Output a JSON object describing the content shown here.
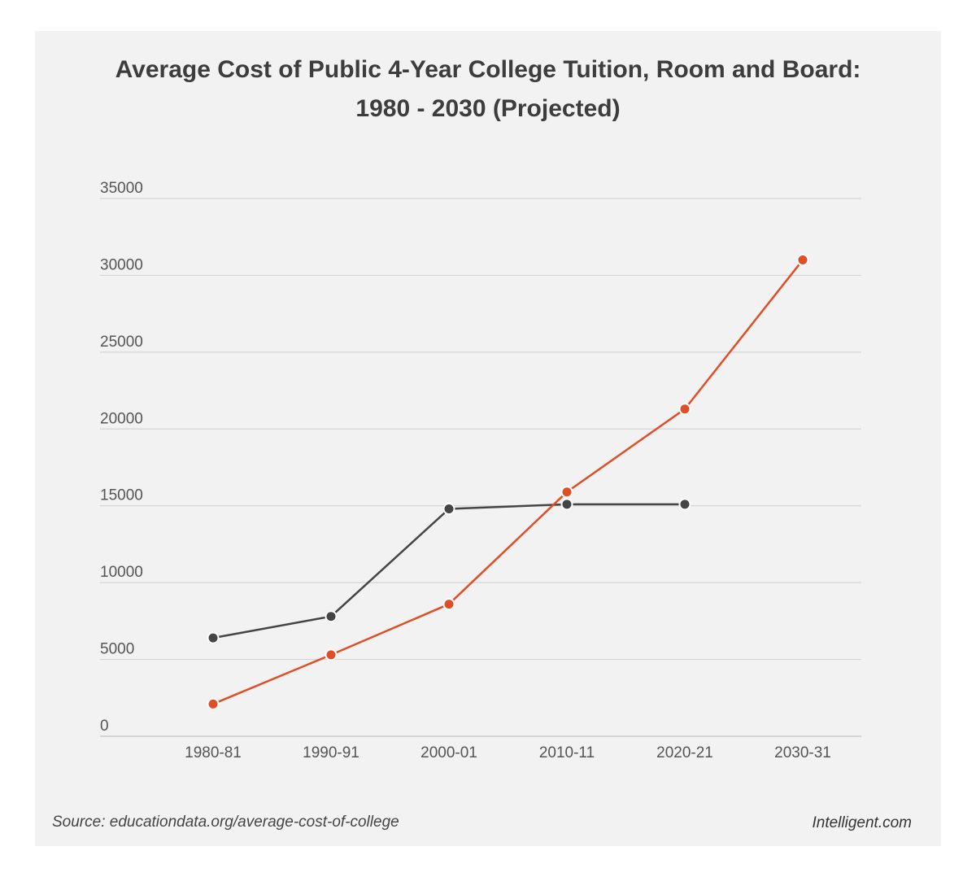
{
  "chart_data": {
    "type": "line",
    "title_line1": "Average Cost of Public 4-Year College Tuition, Room and Board:",
    "title_line2": "1980 - 2030 (Projected)",
    "xlabel": "",
    "ylabel": "",
    "categories": [
      "1980-81",
      "1990-91",
      "2000-01",
      "2010-11",
      "2020-21",
      "2030-31"
    ],
    "y_ticks": [
      "35000",
      "30000",
      "25000",
      "20000",
      "15000",
      "10000",
      "5000",
      "0"
    ],
    "ylim": [
      0,
      35000
    ],
    "grid": true,
    "legend": "none",
    "series": [
      {
        "color": "#454545",
        "values": [
          6400,
          7800,
          14800,
          15100,
          15100,
          null
        ]
      },
      {
        "color": "#e04e25",
        "values": [
          2100,
          5300,
          8600,
          15900,
          21300,
          31000
        ]
      }
    ]
  },
  "footer": {
    "source": "Source: educationdata.org/average-cost-of-college",
    "brand": "Intelligent.com"
  }
}
